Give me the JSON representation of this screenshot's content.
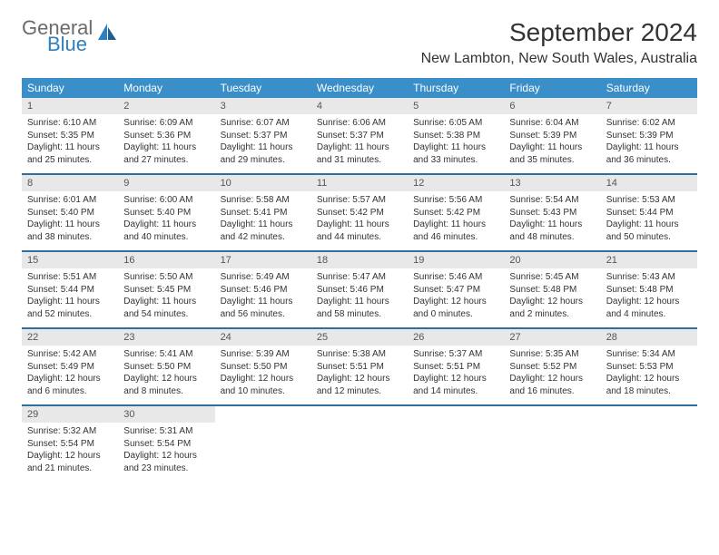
{
  "logo": {
    "word1": "General",
    "word2": "Blue"
  },
  "title": "September 2024",
  "location": "New Lambton, New South Wales, Australia",
  "colors": {
    "header_bg": "#3a8fc9",
    "header_text": "#ffffff",
    "row_divider": "#2f6fa0",
    "daynum_bg": "#e8e8e8",
    "daynum_text": "#555555",
    "body_text": "#333333",
    "logo_gray": "#6b6b6b",
    "logo_blue": "#2f7fbf"
  },
  "weekdays": [
    "Sunday",
    "Monday",
    "Tuesday",
    "Wednesday",
    "Thursday",
    "Friday",
    "Saturday"
  ],
  "days": [
    {
      "n": "1",
      "sr": "6:10 AM",
      "ss": "5:35 PM",
      "dl": "11 hours and 25 minutes."
    },
    {
      "n": "2",
      "sr": "6:09 AM",
      "ss": "5:36 PM",
      "dl": "11 hours and 27 minutes."
    },
    {
      "n": "3",
      "sr": "6:07 AM",
      "ss": "5:37 PM",
      "dl": "11 hours and 29 minutes."
    },
    {
      "n": "4",
      "sr": "6:06 AM",
      "ss": "5:37 PM",
      "dl": "11 hours and 31 minutes."
    },
    {
      "n": "5",
      "sr": "6:05 AM",
      "ss": "5:38 PM",
      "dl": "11 hours and 33 minutes."
    },
    {
      "n": "6",
      "sr": "6:04 AM",
      "ss": "5:39 PM",
      "dl": "11 hours and 35 minutes."
    },
    {
      "n": "7",
      "sr": "6:02 AM",
      "ss": "5:39 PM",
      "dl": "11 hours and 36 minutes."
    },
    {
      "n": "8",
      "sr": "6:01 AM",
      "ss": "5:40 PM",
      "dl": "11 hours and 38 minutes."
    },
    {
      "n": "9",
      "sr": "6:00 AM",
      "ss": "5:40 PM",
      "dl": "11 hours and 40 minutes."
    },
    {
      "n": "10",
      "sr": "5:58 AM",
      "ss": "5:41 PM",
      "dl": "11 hours and 42 minutes."
    },
    {
      "n": "11",
      "sr": "5:57 AM",
      "ss": "5:42 PM",
      "dl": "11 hours and 44 minutes."
    },
    {
      "n": "12",
      "sr": "5:56 AM",
      "ss": "5:42 PM",
      "dl": "11 hours and 46 minutes."
    },
    {
      "n": "13",
      "sr": "5:54 AM",
      "ss": "5:43 PM",
      "dl": "11 hours and 48 minutes."
    },
    {
      "n": "14",
      "sr": "5:53 AM",
      "ss": "5:44 PM",
      "dl": "11 hours and 50 minutes."
    },
    {
      "n": "15",
      "sr": "5:51 AM",
      "ss": "5:44 PM",
      "dl": "11 hours and 52 minutes."
    },
    {
      "n": "16",
      "sr": "5:50 AM",
      "ss": "5:45 PM",
      "dl": "11 hours and 54 minutes."
    },
    {
      "n": "17",
      "sr": "5:49 AM",
      "ss": "5:46 PM",
      "dl": "11 hours and 56 minutes."
    },
    {
      "n": "18",
      "sr": "5:47 AM",
      "ss": "5:46 PM",
      "dl": "11 hours and 58 minutes."
    },
    {
      "n": "19",
      "sr": "5:46 AM",
      "ss": "5:47 PM",
      "dl": "12 hours and 0 minutes."
    },
    {
      "n": "20",
      "sr": "5:45 AM",
      "ss": "5:48 PM",
      "dl": "12 hours and 2 minutes."
    },
    {
      "n": "21",
      "sr": "5:43 AM",
      "ss": "5:48 PM",
      "dl": "12 hours and 4 minutes."
    },
    {
      "n": "22",
      "sr": "5:42 AM",
      "ss": "5:49 PM",
      "dl": "12 hours and 6 minutes."
    },
    {
      "n": "23",
      "sr": "5:41 AM",
      "ss": "5:50 PM",
      "dl": "12 hours and 8 minutes."
    },
    {
      "n": "24",
      "sr": "5:39 AM",
      "ss": "5:50 PM",
      "dl": "12 hours and 10 minutes."
    },
    {
      "n": "25",
      "sr": "5:38 AM",
      "ss": "5:51 PM",
      "dl": "12 hours and 12 minutes."
    },
    {
      "n": "26",
      "sr": "5:37 AM",
      "ss": "5:51 PM",
      "dl": "12 hours and 14 minutes."
    },
    {
      "n": "27",
      "sr": "5:35 AM",
      "ss": "5:52 PM",
      "dl": "12 hours and 16 minutes."
    },
    {
      "n": "28",
      "sr": "5:34 AM",
      "ss": "5:53 PM",
      "dl": "12 hours and 18 minutes."
    },
    {
      "n": "29",
      "sr": "5:32 AM",
      "ss": "5:54 PM",
      "dl": "12 hours and 21 minutes."
    },
    {
      "n": "30",
      "sr": "5:31 AM",
      "ss": "5:54 PM",
      "dl": "12 hours and 23 minutes."
    }
  ],
  "labels": {
    "sunrise": "Sunrise: ",
    "sunset": "Sunset: ",
    "daylight": "Daylight: "
  }
}
